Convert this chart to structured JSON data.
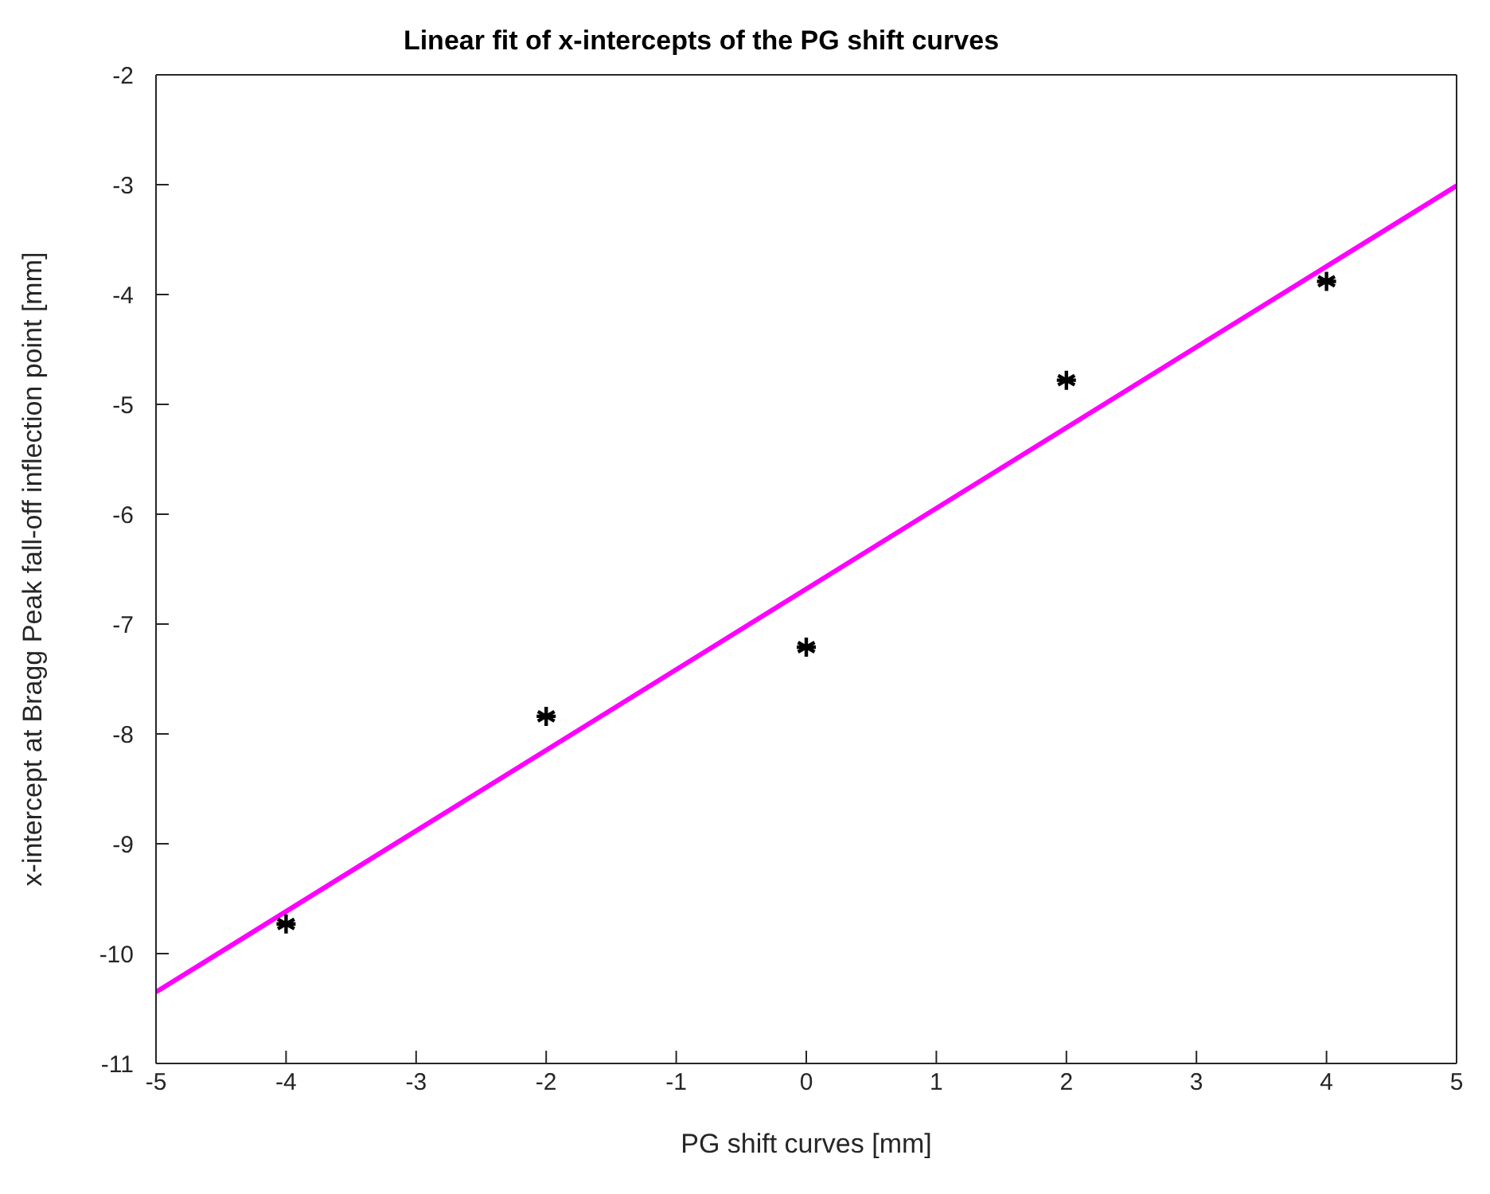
{
  "chart_data": {
    "type": "scatter",
    "title": "Linear fit of x-intercepts of the PG shift curves",
    "xlabel": "PG shift curves [mm]",
    "ylabel": "x-intercept at Bragg Peak fall-off inflection point [mm]",
    "xlim": [
      -5,
      5
    ],
    "ylim": [
      -11,
      -2
    ],
    "xticks": [
      -5,
      -4,
      -3,
      -2,
      -1,
      0,
      1,
      2,
      3,
      4,
      5
    ],
    "yticks": [
      -11,
      -10,
      -9,
      -8,
      -7,
      -6,
      -5,
      -4,
      -3,
      -2
    ],
    "series": [
      {
        "color": "#000000",
        "marker": "cross",
        "x": [
          -4,
          -2,
          0,
          2,
          4
        ],
        "values": [
          -9.73,
          -7.84,
          -7.21,
          -4.78,
          -3.88
        ]
      },
      {
        "type": "line",
        "color": "#ff00ff",
        "marker": "none",
        "line_style": "solid",
        "x": [
          -5,
          5
        ],
        "values": [
          -10.35,
          -3.01
        ]
      }
    ]
  }
}
